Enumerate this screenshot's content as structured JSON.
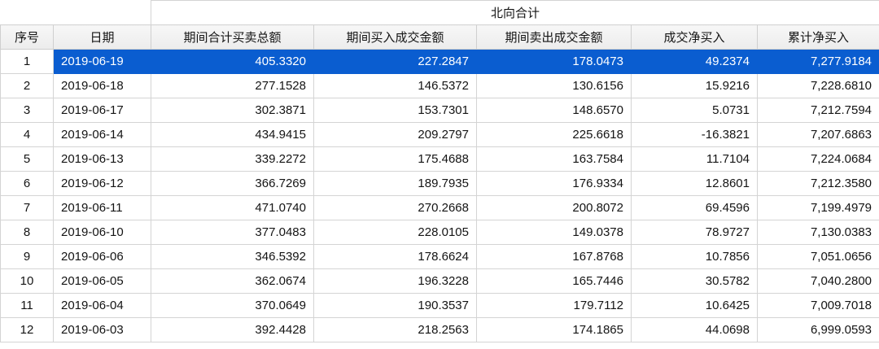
{
  "table": {
    "group_header": "北向合计",
    "selected_row_index": 0,
    "columns": [
      {
        "key": "seq",
        "label": "序号"
      },
      {
        "key": "date",
        "label": "日期"
      },
      {
        "key": "total_amount",
        "label": "期间合计买卖总额"
      },
      {
        "key": "buy_amount",
        "label": "期间买入成交金额"
      },
      {
        "key": "sell_amount",
        "label": "期间卖出成交金额"
      },
      {
        "key": "net_buy",
        "label": "成交净买入"
      },
      {
        "key": "cum_net_buy",
        "label": "累计净买入"
      }
    ],
    "rows": [
      [
        "1",
        "2019-06-19",
        "405.3320",
        "227.2847",
        "178.0473",
        "49.2374",
        "7,277.9184"
      ],
      [
        "2",
        "2019-06-18",
        "277.1528",
        "146.5372",
        "130.6156",
        "15.9216",
        "7,228.6810"
      ],
      [
        "3",
        "2019-06-17",
        "302.3871",
        "153.7301",
        "148.6570",
        "5.0731",
        "7,212.7594"
      ],
      [
        "4",
        "2019-06-14",
        "434.9415",
        "209.2797",
        "225.6618",
        "-16.3821",
        "7,207.6863"
      ],
      [
        "5",
        "2019-06-13",
        "339.2272",
        "175.4688",
        "163.7584",
        "11.7104",
        "7,224.0684"
      ],
      [
        "6",
        "2019-06-12",
        "366.7269",
        "189.7935",
        "176.9334",
        "12.8601",
        "7,212.3580"
      ],
      [
        "7",
        "2019-06-11",
        "471.0740",
        "270.2668",
        "200.8072",
        "69.4596",
        "7,199.4979"
      ],
      [
        "8",
        "2019-06-10",
        "377.0483",
        "228.0105",
        "149.0378",
        "78.9727",
        "7,130.0383"
      ],
      [
        "9",
        "2019-06-06",
        "346.5392",
        "178.6624",
        "167.8768",
        "10.7856",
        "7,051.0656"
      ],
      [
        "10",
        "2019-06-05",
        "362.0674",
        "196.3228",
        "165.7446",
        "30.5782",
        "7,040.2800"
      ],
      [
        "11",
        "2019-06-04",
        "370.0649",
        "190.3537",
        "179.7112",
        "10.6425",
        "7,009.7018"
      ],
      [
        "12",
        "2019-06-03",
        "392.4428",
        "218.2563",
        "174.1865",
        "44.0698",
        "6,999.0593"
      ]
    ]
  },
  "colors": {
    "selection": "#0a5dd0",
    "header_bg": "#f0f0f0",
    "border": "#d4d4d4"
  }
}
